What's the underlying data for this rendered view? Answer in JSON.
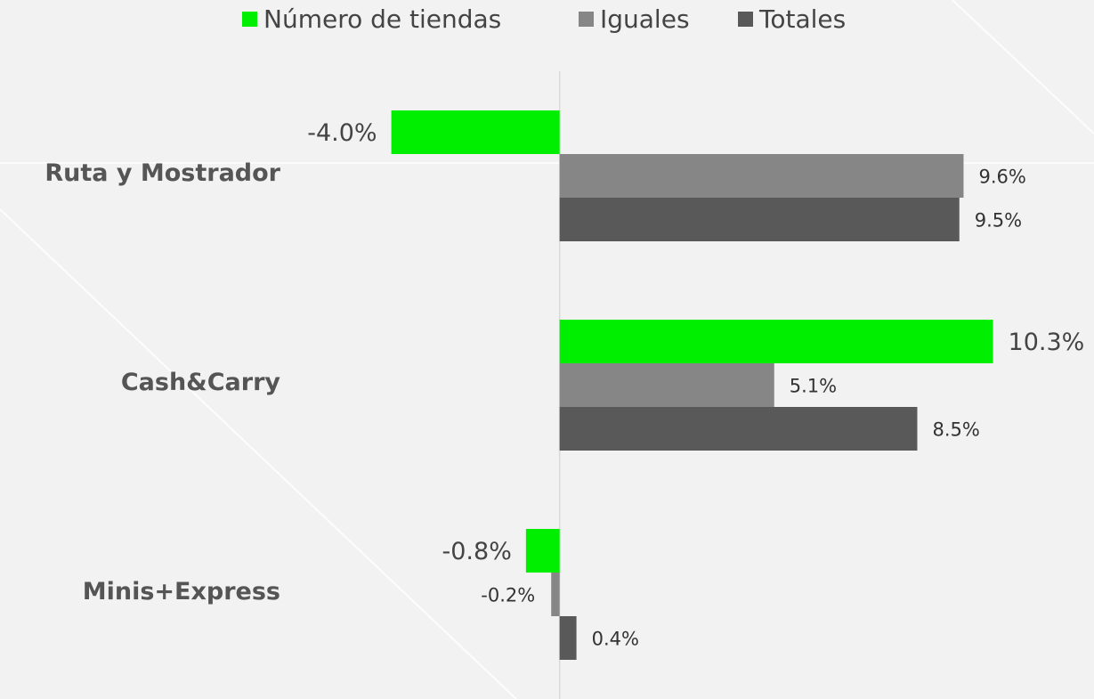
{
  "chart_data": {
    "type": "bar",
    "orientation": "horizontal",
    "categories": [
      "Ruta y Mostrador",
      "Cash&Carry",
      "Minis+Express"
    ],
    "series": [
      {
        "name": "Número de tiendas",
        "color": "#00ee00",
        "values": [
          -4.0,
          10.3,
          -0.8
        ],
        "value_labels": [
          "-4.0%",
          "10.3%",
          "-0.8%"
        ]
      },
      {
        "name": "Iguales",
        "color": "#868686",
        "values": [
          9.6,
          5.1,
          -0.2
        ],
        "value_labels": [
          "9.6%",
          "5.1%",
          "-0.2%"
        ]
      },
      {
        "name": "Totales",
        "color": "#595959",
        "values": [
          9.5,
          8.5,
          0.4
        ],
        "value_labels": [
          "9.5%",
          "8.5%",
          "0.4%"
        ]
      }
    ],
    "xlim": [
      -13.3,
      12.7
    ],
    "legend": "top"
  }
}
